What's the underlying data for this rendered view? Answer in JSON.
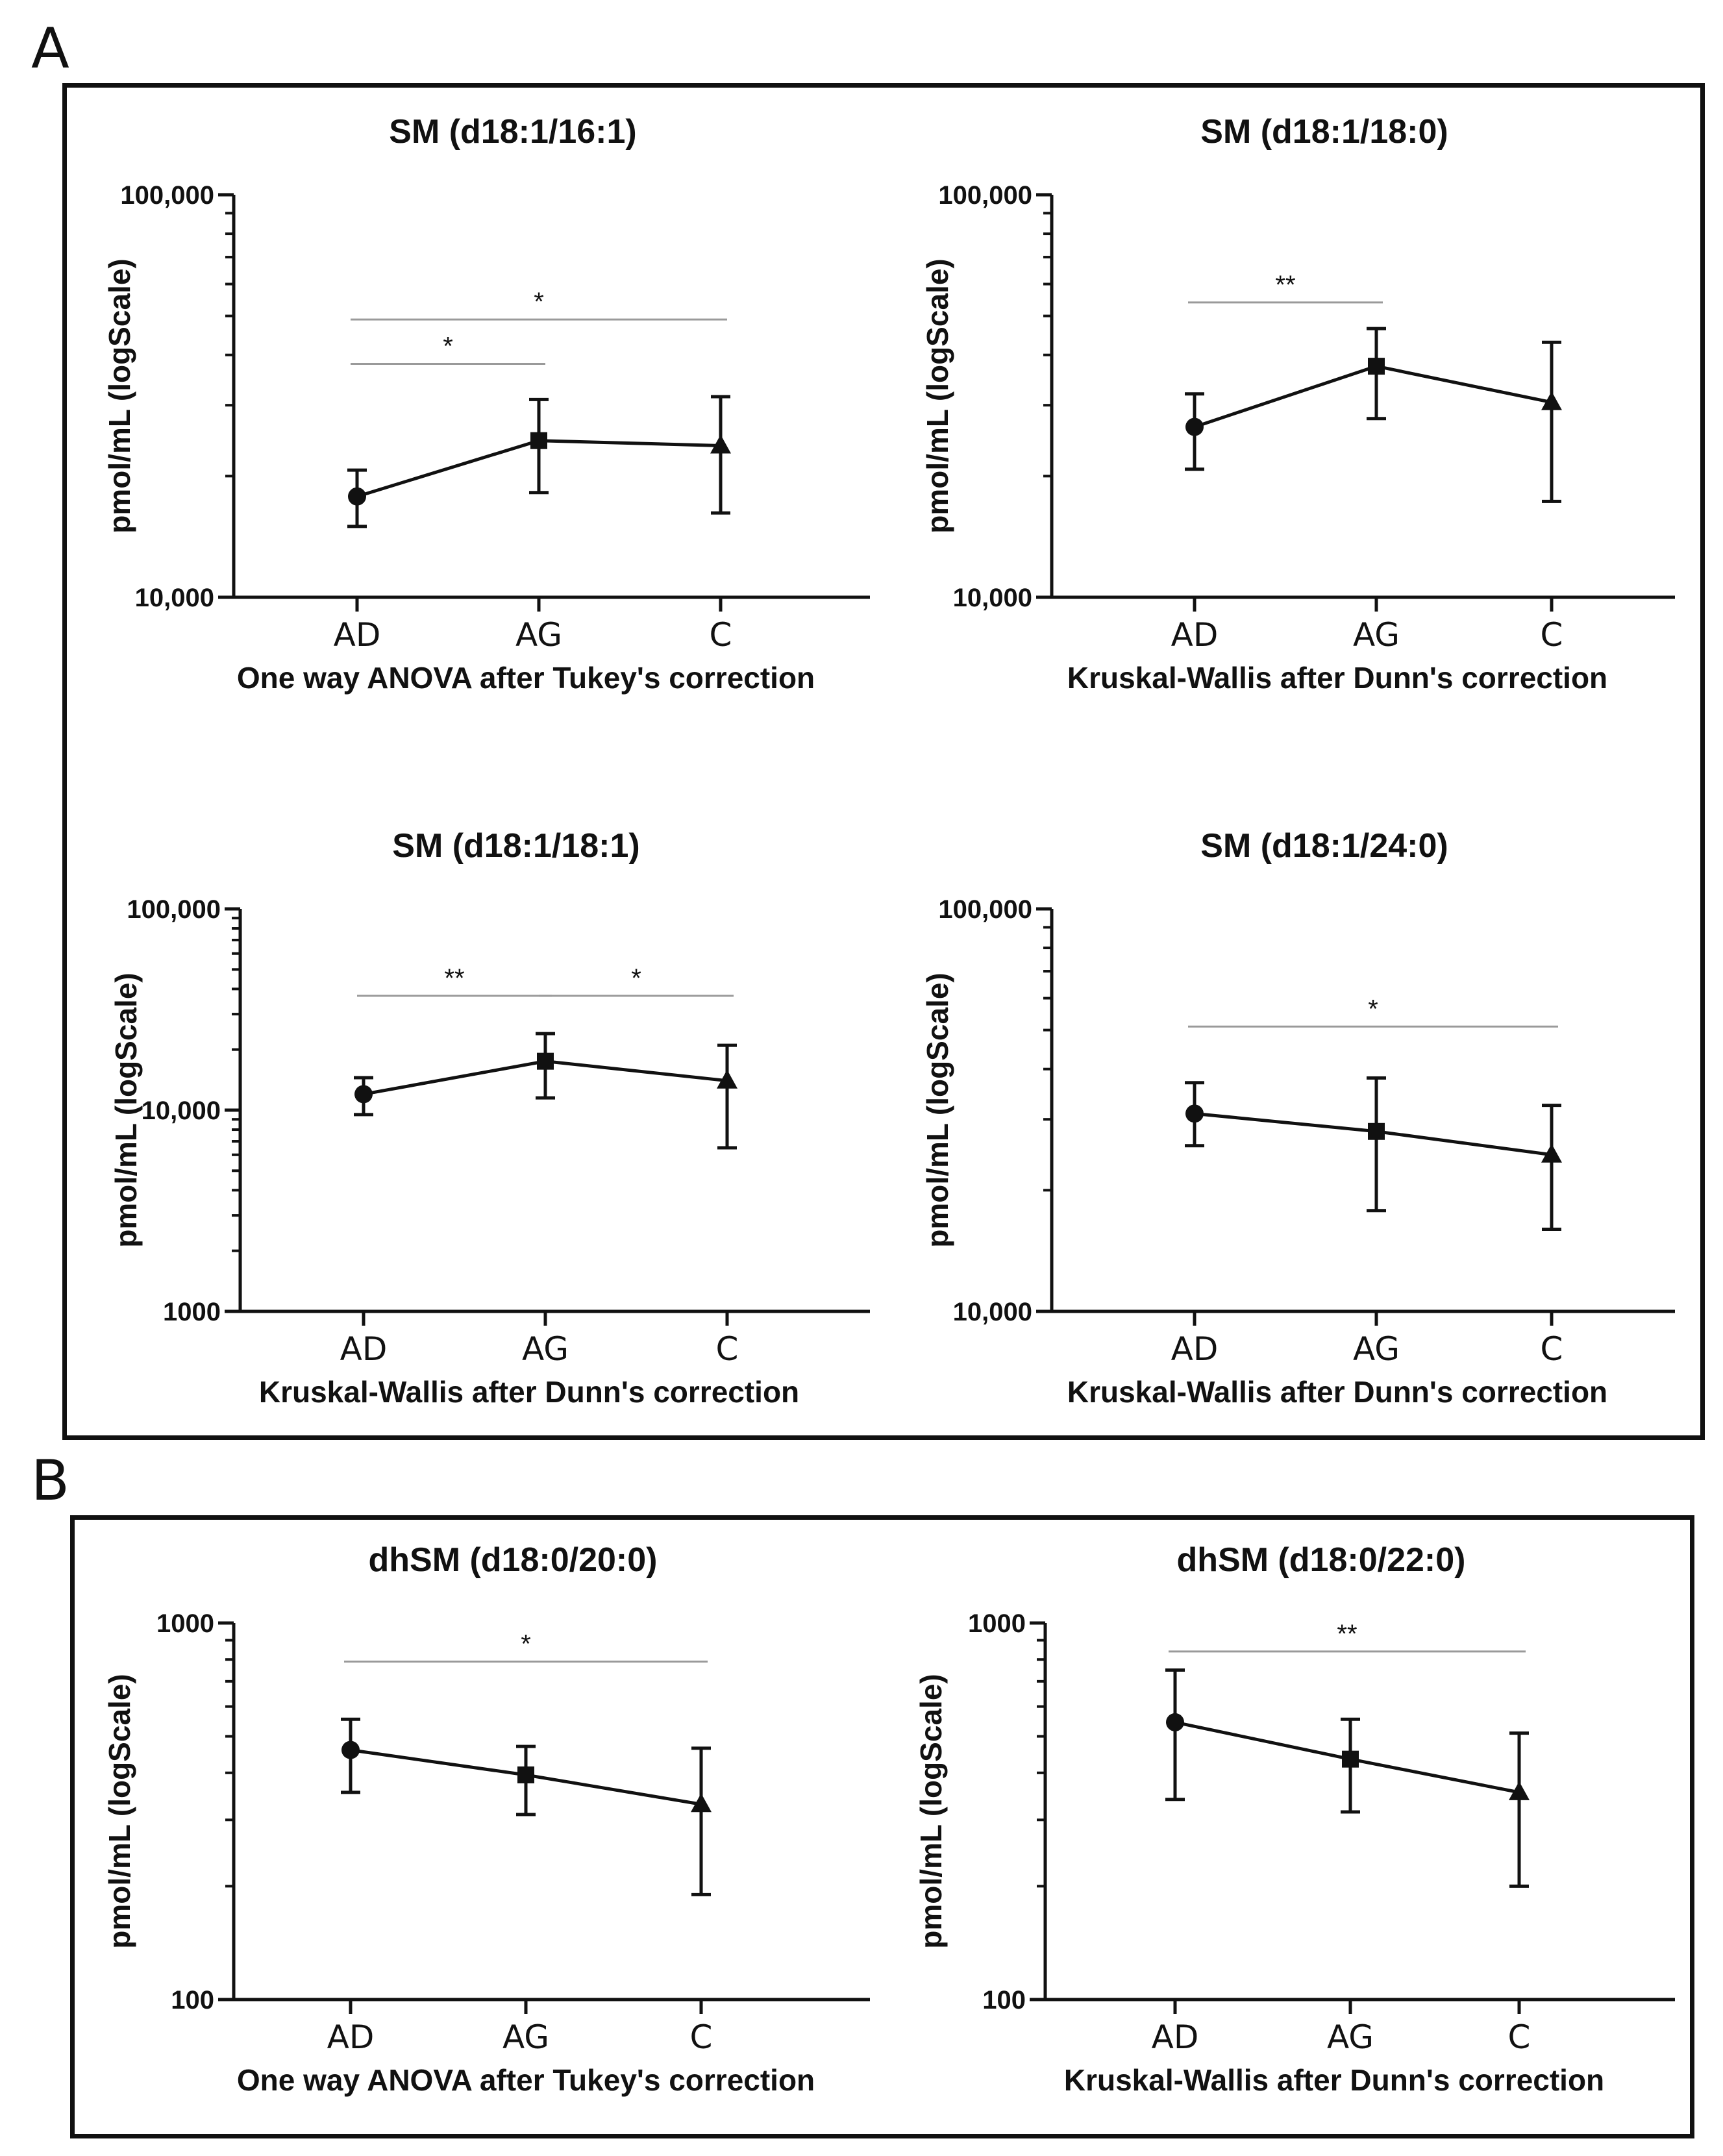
{
  "panels": [
    {
      "label": "A",
      "chart_indices": [
        0,
        1,
        2,
        3
      ]
    },
    {
      "label": "B",
      "chart_indices": [
        4,
        5
      ]
    }
  ],
  "chart_data": [
    {
      "type": "line",
      "title": "SM (d18:1/16:1)",
      "ylabel": "pmol/mL (logScale)",
      "xlabel": "One way ANOVA after Tukey's correction",
      "yscale": "log",
      "ylim": [
        10000,
        100000
      ],
      "ytick_labels": [
        "10,000",
        "100,000"
      ],
      "categories": [
        "AD",
        "AG",
        "C"
      ],
      "markers": [
        "circle",
        "square",
        "triangle"
      ],
      "values": [
        17800,
        24500,
        23800
      ],
      "err_low": [
        15000,
        18200,
        16200
      ],
      "err_high": [
        20700,
        31000,
        31500
      ],
      "significance": [
        {
          "from": 0,
          "to": 1,
          "label": "*",
          "y": 38000
        },
        {
          "from": 0,
          "to": 2,
          "label": "*",
          "y": 49000
        }
      ]
    },
    {
      "type": "line",
      "title": "SM  (d18:1/18:0)",
      "ylabel": "pmol/mL (logScale)",
      "xlabel": "Kruskal-Wallis after Dunn's correction",
      "yscale": "log",
      "ylim": [
        10000,
        100000
      ],
      "ytick_labels": [
        "10,000",
        "100,000"
      ],
      "categories": [
        "AD",
        "AG",
        "C"
      ],
      "markers": [
        "circle",
        "square",
        "triangle"
      ],
      "values": [
        26500,
        37500,
        30500
      ],
      "err_low": [
        20800,
        27800,
        17300
      ],
      "err_high": [
        32000,
        46500,
        43000
      ],
      "significance": [
        {
          "from": 0,
          "to": 1,
          "label": "**",
          "y": 54000
        }
      ]
    },
    {
      "type": "line",
      "title": "SM  (d18:1/18:1)",
      "ylabel": "pmol/mL (logScale)",
      "xlabel": "Kruskal-Wallis after Dunn's correction",
      "yscale": "log",
      "ylim": [
        1000,
        100000
      ],
      "ytick_labels": [
        "1000",
        "10,000",
        "100,000"
      ],
      "categories": [
        "AD",
        "AG",
        "C"
      ],
      "markers": [
        "circle",
        "square",
        "triangle"
      ],
      "values": [
        12000,
        17500,
        14000
      ],
      "err_low": [
        9500,
        11500,
        6500
      ],
      "err_high": [
        14500,
        24000,
        21000
      ],
      "significance": [
        {
          "from": 0,
          "to": 1,
          "label": "**",
          "y": 37000
        },
        {
          "from": 1,
          "to": 2,
          "label": "*",
          "y": 37000
        }
      ]
    },
    {
      "type": "line",
      "title": "SM (d18:1/24:0)",
      "ylabel": "pmol/mL (logScale)",
      "xlabel": "Kruskal-Wallis after Dunn's correction",
      "yscale": "log",
      "ylim": [
        10000,
        100000
      ],
      "ytick_labels": [
        "10,000",
        "100,000"
      ],
      "categories": [
        "AD",
        "AG",
        "C"
      ],
      "markers": [
        "circle",
        "square",
        "triangle"
      ],
      "values": [
        31000,
        28000,
        24500
      ],
      "err_low": [
        25800,
        17800,
        16000
      ],
      "err_high": [
        37000,
        38000,
        32500
      ],
      "significance": [
        {
          "from": 0,
          "to": 2,
          "label": "*",
          "y": 51000
        }
      ]
    },
    {
      "type": "line",
      "title": "dhSM (d18:0/20:0)",
      "ylabel": "pmol/mL (logScale)",
      "xlabel": "One way ANOVA after Tukey's correction",
      "yscale": "log",
      "ylim": [
        100,
        1000
      ],
      "ytick_labels": [
        "100",
        "1000"
      ],
      "categories": [
        "AD",
        "AG",
        "C"
      ],
      "markers": [
        "circle",
        "square",
        "triangle"
      ],
      "values": [
        460,
        395,
        330
      ],
      "err_low": [
        355,
        310,
        190
      ],
      "err_high": [
        555,
        470,
        465
      ],
      "significance": [
        {
          "from": 0,
          "to": 2,
          "label": "*",
          "y": 790
        }
      ]
    },
    {
      "type": "line",
      "title": "dhSM (d18:0/22:0)",
      "ylabel": "pmol/mL (logScale)",
      "xlabel": "Kruskal-Wallis after Dunn's correction",
      "yscale": "log",
      "ylim": [
        100,
        1000
      ],
      "ytick_labels": [
        "100",
        "1000"
      ],
      "categories": [
        "AD",
        "AG",
        "C"
      ],
      "markers": [
        "circle",
        "square",
        "triangle"
      ],
      "values": [
        545,
        435,
        355
      ],
      "err_low": [
        340,
        315,
        200
      ],
      "err_high": [
        750,
        555,
        510
      ],
      "significance": [
        {
          "from": 0,
          "to": 2,
          "label": "**",
          "y": 840
        }
      ]
    }
  ]
}
